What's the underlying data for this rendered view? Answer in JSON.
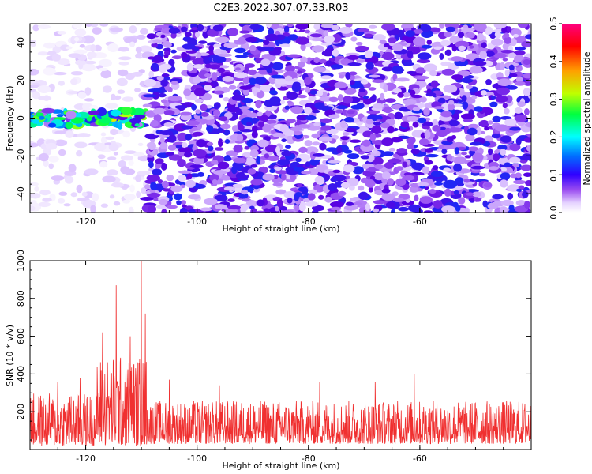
{
  "title": "C2E3.2022.307.07.33.R03",
  "colors": {
    "snr_line": "#f03030",
    "colormap": [
      "#ffffff",
      "#d8b8ff",
      "#9a4cf0",
      "#5a00e0",
      "#0000ff",
      "#00e0ff",
      "#00ff40",
      "#e0ff00",
      "#ff8000",
      "#ff0000",
      "#ff0080"
    ]
  },
  "chart_data": [
    {
      "type": "heatmap",
      "name": "spectrogram",
      "xlabel": "Height of straight line (km)",
      "ylabel": "Frequency (Hz)",
      "xlim": [
        -130,
        -40
      ],
      "ylim": [
        -50,
        50
      ],
      "xticks": [
        -120,
        -100,
        -80,
        -60
      ],
      "yticks": [
        -40,
        -20,
        0,
        20,
        40
      ],
      "colorbar": {
        "label": "Normalized spectral amplitude",
        "range": [
          0.0,
          0.5
        ],
        "ticks": [
          "0.0",
          "0.1",
          "0.2",
          "0.3",
          "0.4",
          "0.5"
        ]
      },
      "features": [
        {
          "description_value": "low background",
          "x_range": [
            -130,
            -109
          ],
          "y_range": [
            -50,
            50
          ],
          "level": 0.02
        },
        {
          "description_value": "strong band",
          "x_range": [
            -130,
            -109
          ],
          "y_range": [
            -4,
            4
          ],
          "level": 0.18,
          "peak": 0.35,
          "peak_x": -114
        },
        {
          "description_value": "broadband noise",
          "x_range": [
            -109,
            -40
          ],
          "y_range": [
            -50,
            50
          ],
          "level": 0.08
        }
      ]
    },
    {
      "type": "line",
      "name": "snr",
      "xlabel": "Height of straight line (km)",
      "ylabel": "SNR (10 * v/v)",
      "xlim": [
        -130,
        -40
      ],
      "ylim": [
        0,
        1000
      ],
      "xticks": [
        -120,
        -100,
        -80,
        -60
      ],
      "yticks": [
        200,
        400,
        600,
        800,
        1000
      ],
      "segments": [
        {
          "x_range": [
            -130,
            -118
          ],
          "typical": [
            20,
            300
          ],
          "peaks": [
            {
              "x": -125,
              "y": 360
            },
            {
              "x": -121,
              "y": 380
            }
          ]
        },
        {
          "x_range": [
            -118,
            -109
          ],
          "typical": [
            20,
            500
          ],
          "peaks": [
            {
              "x": -117,
              "y": 620
            },
            {
              "x": -114.5,
              "y": 870
            },
            {
              "x": -112,
              "y": 600
            },
            {
              "x": -110,
              "y": 1000
            },
            {
              "x": -109.3,
              "y": 720
            }
          ]
        },
        {
          "x_range": [
            -109,
            -40
          ],
          "typical": [
            30,
            260
          ],
          "peaks": [
            {
              "x": -105,
              "y": 370
            },
            {
              "x": -96,
              "y": 340
            },
            {
              "x": -78,
              "y": 360
            },
            {
              "x": -68,
              "y": 360
            },
            {
              "x": -61,
              "y": 400
            }
          ]
        }
      ]
    }
  ]
}
